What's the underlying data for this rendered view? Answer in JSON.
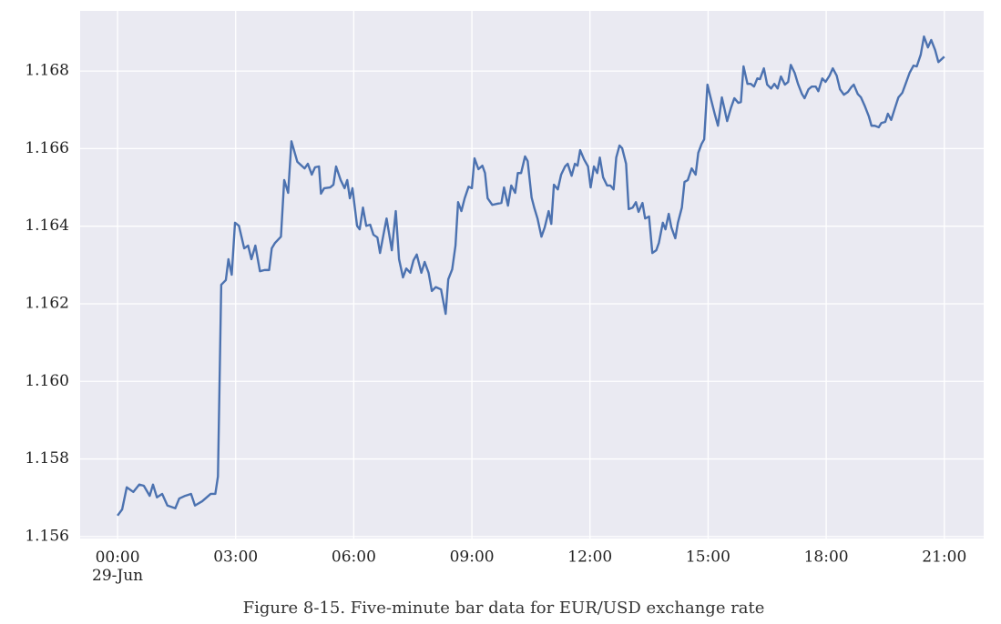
{
  "chart_data": {
    "type": "line",
    "title": "Figure 8-15. Five-minute bar data for EUR/USD exchange rate",
    "x": [
      0,
      7,
      14,
      24,
      33,
      40,
      49,
      54,
      60,
      68,
      76,
      88,
      94,
      103,
      112,
      118,
      129,
      142,
      149,
      153,
      158,
      165,
      169,
      174,
      179,
      185,
      193,
      199,
      204,
      210,
      217,
      224,
      231,
      235,
      240,
      249,
      254,
      260,
      265,
      274,
      285,
      290,
      296,
      301,
      307,
      310,
      315,
      324,
      329,
      333,
      340,
      346,
      350,
      354,
      358,
      365,
      369,
      374,
      379,
      385,
      390,
      396,
      400,
      406,
      410,
      418,
      424,
      429,
      435,
      440,
      446,
      451,
      456,
      463,
      468,
      474,
      479,
      485,
      493,
      500,
      504,
      510,
      515,
      519,
      524,
      529,
      535,
      540,
      544,
      550,
      556,
      560,
      564,
      571,
      579,
      585,
      589,
      595,
      600,
      606,
      610,
      615,
      621,
      625,
      631,
      635,
      640,
      646,
      651,
      657,
      661,
      665,
      671,
      676,
      682,
      686,
      692,
      697,
      701,
      705,
      711,
      717,
      721,
      726,
      731,
      735,
      740,
      746,
      751,
      756,
      760,
      765,
      769,
      775,
      779,
      785,
      790,
      794,
      800,
      804,
      810,
      815,
      821,
      825,
      831,
      835,
      840,
      844,
      850,
      854,
      860,
      864,
      869,
      875,
      881,
      885,
      890,
      894,
      899,
      904,
      910,
      915,
      921,
      925,
      929,
      935,
      940,
      946,
      950,
      954,
      960,
      965,
      970,
      975,
      979,
      985,
      990,
      996,
      1001,
      1006,
      1011,
      1017,
      1022,
      1026,
      1032,
      1037,
      1043,
      1047,
      1053,
      1058,
      1064,
      1068,
      1074,
      1079,
      1085,
      1090,
      1096,
      1101,
      1107,
      1113,
      1118,
      1122,
      1128,
      1133,
      1139,
      1145,
      1149,
      1154,
      1160,
      1164,
      1170,
      1174,
      1179,
      1185,
      1190,
      1196,
      1201,
      1207,
      1213,
      1218,
      1224,
      1229,
      1235,
      1240,
      1246,
      1251,
      1260
    ],
    "values": [
      1.15654,
      1.1567,
      1.15727,
      1.15715,
      1.15734,
      1.15731,
      1.15705,
      1.15734,
      1.15701,
      1.1571,
      1.1568,
      1.15673,
      1.15698,
      1.15705,
      1.1571,
      1.1568,
      1.15691,
      1.1571,
      1.1571,
      1.15755,
      1.16249,
      1.16261,
      1.16315,
      1.16275,
      1.16409,
      1.16401,
      1.16343,
      1.1635,
      1.16315,
      1.1635,
      1.16284,
      1.16287,
      1.16287,
      1.16343,
      1.16357,
      1.16373,
      1.16519,
      1.16486,
      1.16619,
      1.16566,
      1.16549,
      1.16561,
      1.16533,
      1.16552,
      1.16554,
      1.16484,
      1.16498,
      1.165,
      1.16507,
      1.16554,
      1.16519,
      1.16498,
      1.16519,
      1.16472,
      1.16498,
      1.16401,
      1.16392,
      1.16448,
      1.16401,
      1.16404,
      1.16378,
      1.16371,
      1.16331,
      1.16385,
      1.1642,
      1.16338,
      1.16439,
      1.16315,
      1.16268,
      1.16291,
      1.1628,
      1.16312,
      1.16327,
      1.1628,
      1.16308,
      1.1628,
      1.16233,
      1.16243,
      1.16237,
      1.16174,
      1.16263,
      1.16289,
      1.1635,
      1.16462,
      1.16439,
      1.16472,
      1.16502,
      1.16498,
      1.16575,
      1.16547,
      1.16556,
      1.16537,
      1.16472,
      1.16455,
      1.16458,
      1.1646,
      1.165,
      1.16453,
      1.16505,
      1.16486,
      1.16537,
      1.16537,
      1.1658,
      1.16568,
      1.16474,
      1.16448,
      1.1642,
      1.16373,
      1.16397,
      1.16439,
      1.16406,
      1.16507,
      1.16495,
      1.16533,
      1.16554,
      1.16561,
      1.1653,
      1.16561,
      1.16556,
      1.16596,
      1.16572,
      1.16554,
      1.165,
      1.16554,
      1.16537,
      1.16577,
      1.16526,
      1.16505,
      1.16505,
      1.16495,
      1.16577,
      1.16608,
      1.16601,
      1.16561,
      1.16444,
      1.16448,
      1.16462,
      1.16437,
      1.1646,
      1.1642,
      1.16425,
      1.16331,
      1.16338,
      1.16357,
      1.16409,
      1.16392,
      1.16432,
      1.16397,
      1.16369,
      1.16409,
      1.16448,
      1.16514,
      1.16519,
      1.16549,
      1.16533,
      1.16589,
      1.16612,
      1.16624,
      1.16765,
      1.1673,
      1.1669,
      1.16659,
      1.16732,
      1.16702,
      1.16671,
      1.16706,
      1.1673,
      1.16718,
      1.1672,
      1.16812,
      1.16767,
      1.16767,
      1.1676,
      1.16781,
      1.16779,
      1.16807,
      1.16765,
      1.16755,
      1.16767,
      1.16755,
      1.16786,
      1.16765,
      1.16772,
      1.16816,
      1.16795,
      1.16767,
      1.16741,
      1.1673,
      1.16753,
      1.1676,
      1.1676,
      1.16748,
      1.16781,
      1.16772,
      1.16788,
      1.16807,
      1.16788,
      1.16753,
      1.16739,
      1.16746,
      1.16758,
      1.16765,
      1.16741,
      1.16732,
      1.16709,
      1.16683,
      1.16659,
      1.16659,
      1.16655,
      1.16666,
      1.16669,
      1.1669,
      1.16674,
      1.16706,
      1.16732,
      1.16744,
      1.16767,
      1.16795,
      1.16814,
      1.16812,
      1.16842,
      1.16889,
      1.16861,
      1.1688,
      1.16854,
      1.16823,
      1.16837
    ],
    "color": "#4c72b0",
    "xlim": [
      -57,
      1320
    ],
    "xticks": [
      {
        "value": 0,
        "label": "00:00\n29-Jun"
      },
      {
        "value": 180,
        "label": "03:00"
      },
      {
        "value": 360,
        "label": "06:00"
      },
      {
        "value": 540,
        "label": "09:00"
      },
      {
        "value": 720,
        "label": "12:00"
      },
      {
        "value": 900,
        "label": "15:00"
      },
      {
        "value": 1080,
        "label": "18:00"
      },
      {
        "value": 1260,
        "label": "21:00"
      }
    ],
    "ylim": [
      1.15595,
      1.16955
    ],
    "yticks": [
      1.156,
      1.158,
      {
        "value": 1.16,
        "label": "1.160"
      },
      1.162,
      1.164,
      1.166,
      1.168
    ],
    "grid": true,
    "background": "#eaeaf2"
  }
}
